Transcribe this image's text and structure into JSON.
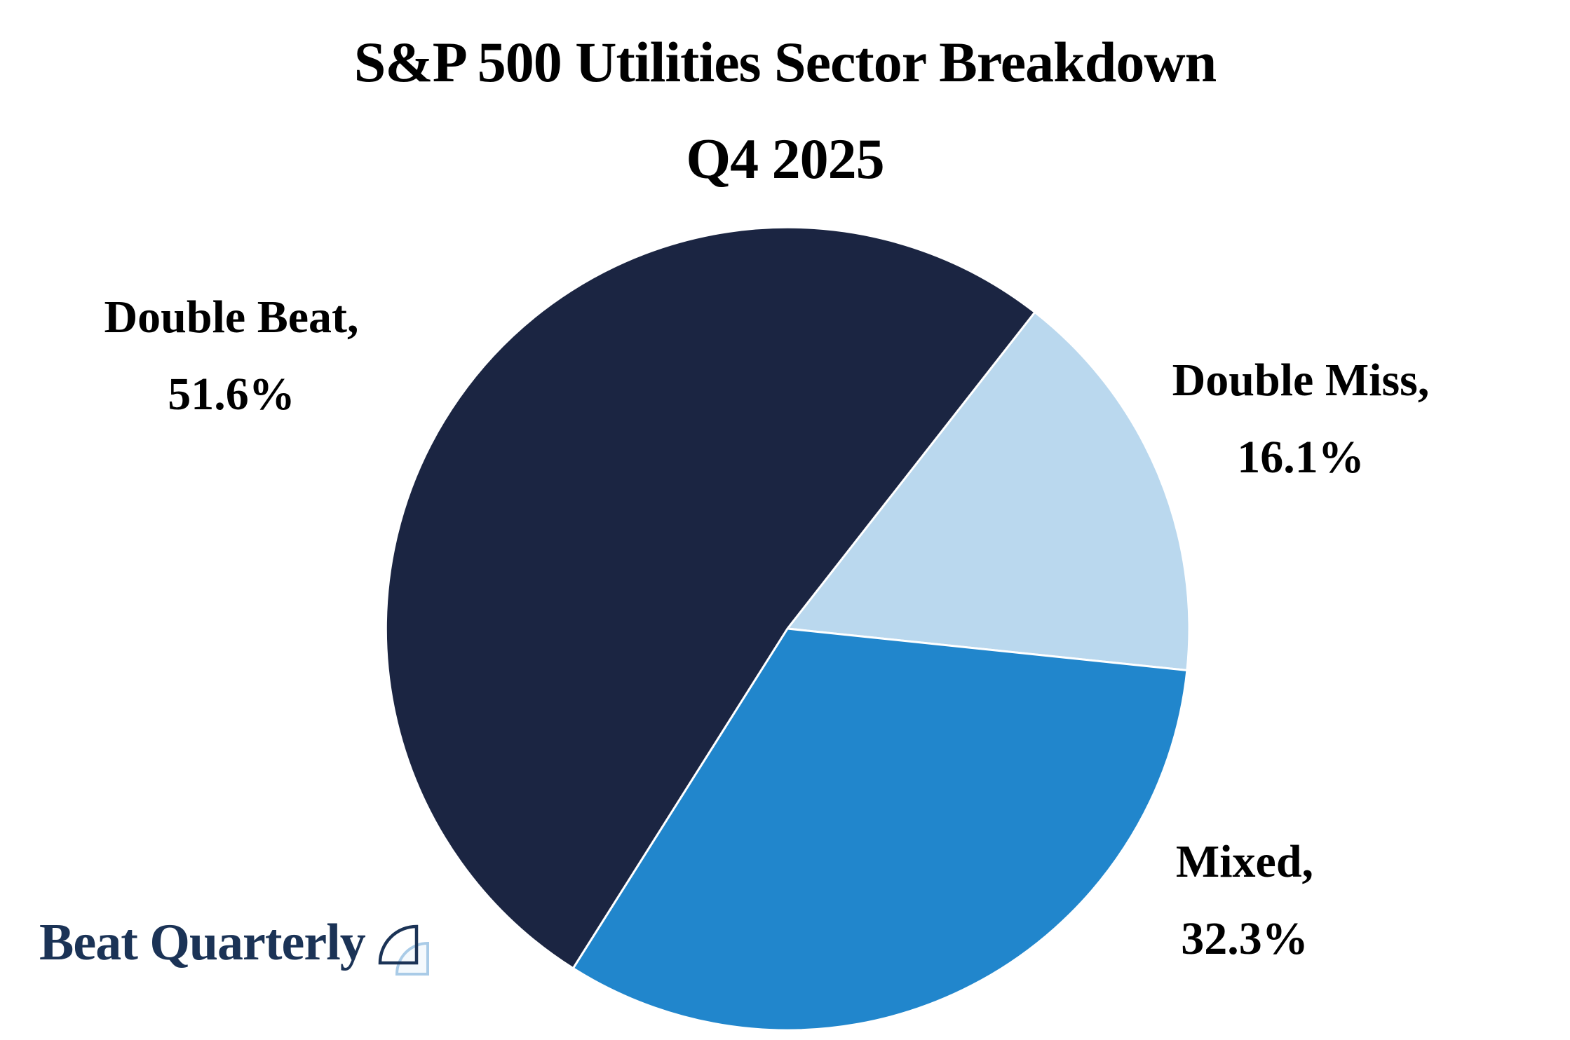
{
  "page": {
    "background_color": "#ffffff"
  },
  "title": {
    "line1": "S&P 500 Utilities Sector Breakdown",
    "line2": "Q4 2025"
  },
  "chart_data": {
    "type": "pie",
    "title": "S&P 500 Utilities Sector Breakdown Q4 2025",
    "legend_position": "none",
    "label_style": "external callouts, two lines: name and percent",
    "start_angle_deg": 52,
    "direction": "clockwise",
    "draw_order": [
      1,
      2,
      0
    ],
    "separator_color": "#ffffff",
    "slices": [
      {
        "label": "Double Beat",
        "value_pct": 51.6,
        "color": "#1b2542",
        "callout": {
          "line1": "Double Beat,",
          "line2": "51.6%"
        }
      },
      {
        "label": "Double Miss",
        "value_pct": 16.1,
        "color": "#bad8ee",
        "callout": {
          "line1": "Double Miss,",
          "line2": "16.1%"
        }
      },
      {
        "label": "Mixed",
        "value_pct": 32.3,
        "color": "#2186cc",
        "callout": {
          "line1": "Mixed,",
          "line2": "32.3%"
        }
      }
    ]
  },
  "logo": {
    "text": "Beat Quarterly",
    "text_color": "#1b3356",
    "icon": "two overlapping quarter-circle outlines",
    "icon_dark_color": "#1b3356",
    "icon_light_color": "#a9cbe7"
  }
}
